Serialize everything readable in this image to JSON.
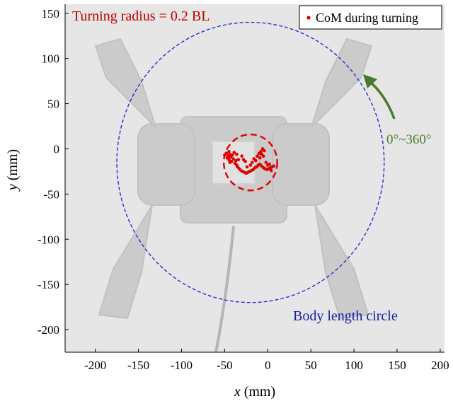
{
  "chart_data": {
    "type": "scatter",
    "title": "",
    "xlabel_var": "x",
    "xlabel_unit": " (mm)",
    "ylabel_var": "y",
    "ylabel_unit": " (mm)",
    "xlim": [
      -235,
      205
    ],
    "ylim": [
      -225,
      160
    ],
    "xticks": [
      -200,
      -150,
      -100,
      -50,
      0,
      50,
      100,
      150,
      200
    ],
    "yticks": [
      -200,
      -150,
      -100,
      -50,
      0,
      50,
      100,
      150
    ],
    "grid": false,
    "legend": {
      "position": "top-right",
      "entries": [
        {
          "label": "CoM during turning",
          "color": "#e00000",
          "marker": "dot"
        }
      ]
    },
    "annotations": {
      "turning_radius": "Turning radius = 0.2 BL",
      "rotation": "0°~360°",
      "body_circle": "Body length circle"
    },
    "circles": [
      {
        "name": "Body length circle",
        "center": [
          -20,
          -15
        ],
        "radius": 155,
        "color": "#2a2ad0",
        "style": "dashed"
      },
      {
        "name": "Turning radius",
        "center": [
          -20,
          -15
        ],
        "radius": 31,
        "color": "#e00000",
        "style": "dashed"
      }
    ],
    "series": [
      {
        "name": "CoM during turning",
        "color": "#e00000",
        "points": [
          [
            -48,
            -5
          ],
          [
            -46,
            -8
          ],
          [
            -47,
            -10
          ],
          [
            -45,
            -12
          ],
          [
            -44,
            -6
          ],
          [
            -43,
            -9
          ],
          [
            -45,
            -3
          ],
          [
            -42,
            -14
          ],
          [
            -41,
            -7
          ],
          [
            -40,
            -11
          ],
          [
            -38,
            -16
          ],
          [
            -37,
            -13
          ],
          [
            -36,
            -18
          ],
          [
            -35,
            -20
          ],
          [
            -33,
            -22
          ],
          [
            -31,
            -24
          ],
          [
            -29,
            -25
          ],
          [
            -27,
            -26
          ],
          [
            -25,
            -27
          ],
          [
            -23,
            -26
          ],
          [
            -21,
            -25
          ],
          [
            -19,
            -24
          ],
          [
            -17,
            -23
          ],
          [
            -15,
            -21
          ],
          [
            -13,
            -20
          ],
          [
            -11,
            -18
          ],
          [
            -9,
            -17
          ],
          [
            -7,
            -19
          ],
          [
            -5,
            -21
          ],
          [
            -3,
            -22
          ],
          [
            -1,
            -23
          ],
          [
            1,
            -22
          ],
          [
            3,
            -21
          ],
          [
            5,
            -20
          ],
          [
            7,
            -19
          ],
          [
            -10,
            -5
          ],
          [
            -8,
            -3
          ],
          [
            -6,
            0
          ],
          [
            -5,
            -8
          ],
          [
            -4,
            -2
          ],
          [
            -7,
            -6
          ],
          [
            -9,
            -10
          ],
          [
            -39,
            -4
          ],
          [
            -50,
            -7
          ],
          [
            -44,
            -15
          ],
          [
            -34,
            -12
          ],
          [
            -30,
            -8
          ],
          [
            -28,
            -12
          ],
          [
            -26,
            -14
          ],
          [
            -20,
            -18
          ],
          [
            -18,
            -15
          ],
          [
            -16,
            -11
          ],
          [
            -14,
            -13
          ],
          [
            -12,
            -8
          ],
          [
            2,
            -17
          ],
          [
            4,
            -24
          ],
          [
            -2,
            -15
          ],
          [
            0,
            -18
          ],
          [
            -24,
            -20
          ],
          [
            -36,
            -6
          ]
        ]
      }
    ]
  }
}
